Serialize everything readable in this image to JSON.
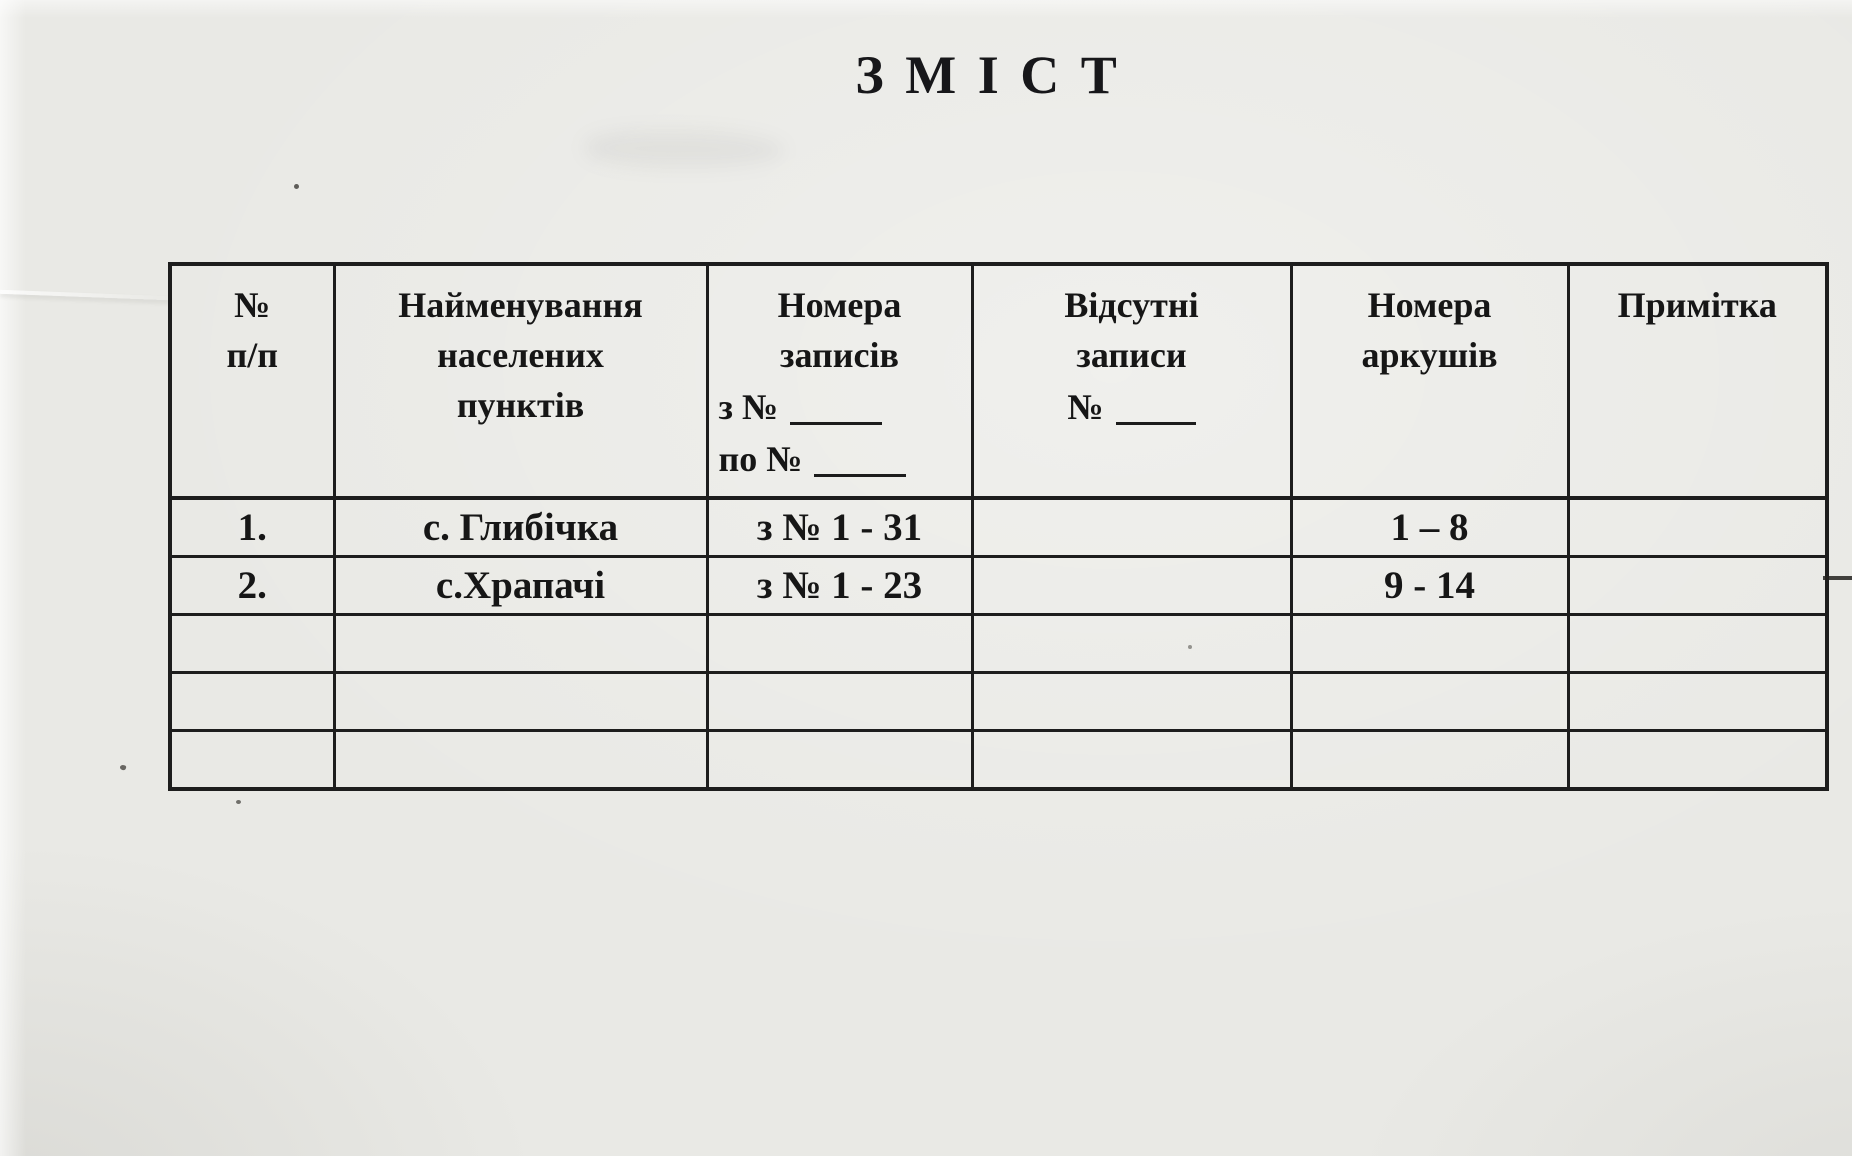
{
  "page": {
    "title": "З М І С Т"
  },
  "table": {
    "header": {
      "col1": {
        "line1": "№",
        "line2": "п/п"
      },
      "col2": {
        "line1": "Найменування",
        "line2": "населених",
        "line3": "пунктів"
      },
      "col3": {
        "line1": "Номера",
        "line2": "записів",
        "line3_prefix": "з №",
        "line4_prefix": "по №"
      },
      "col4": {
        "line1": "Відсутні",
        "line2": "записи",
        "line3_prefix": "№"
      },
      "col5": {
        "line1": "Номера",
        "line2": "аркушів"
      },
      "col6": {
        "line1": "Примітка"
      }
    },
    "rows": [
      {
        "num": "1.",
        "settlement": "с. Глибічка",
        "records": "з № 1 - 31",
        "missing": "",
        "sheets": "1 – 8",
        "note": ""
      },
      {
        "num": "2.",
        "settlement": "с.Храпачі",
        "records": "з № 1 - 23",
        "missing": "",
        "sheets": "9 - 14",
        "note": ""
      },
      {
        "num": "",
        "settlement": "",
        "records": "",
        "missing": "",
        "sheets": "",
        "note": ""
      },
      {
        "num": "",
        "settlement": "",
        "records": "",
        "missing": "",
        "sheets": "",
        "note": ""
      },
      {
        "num": "",
        "settlement": "",
        "records": "",
        "missing": "",
        "sheets": "",
        "note": ""
      }
    ]
  }
}
